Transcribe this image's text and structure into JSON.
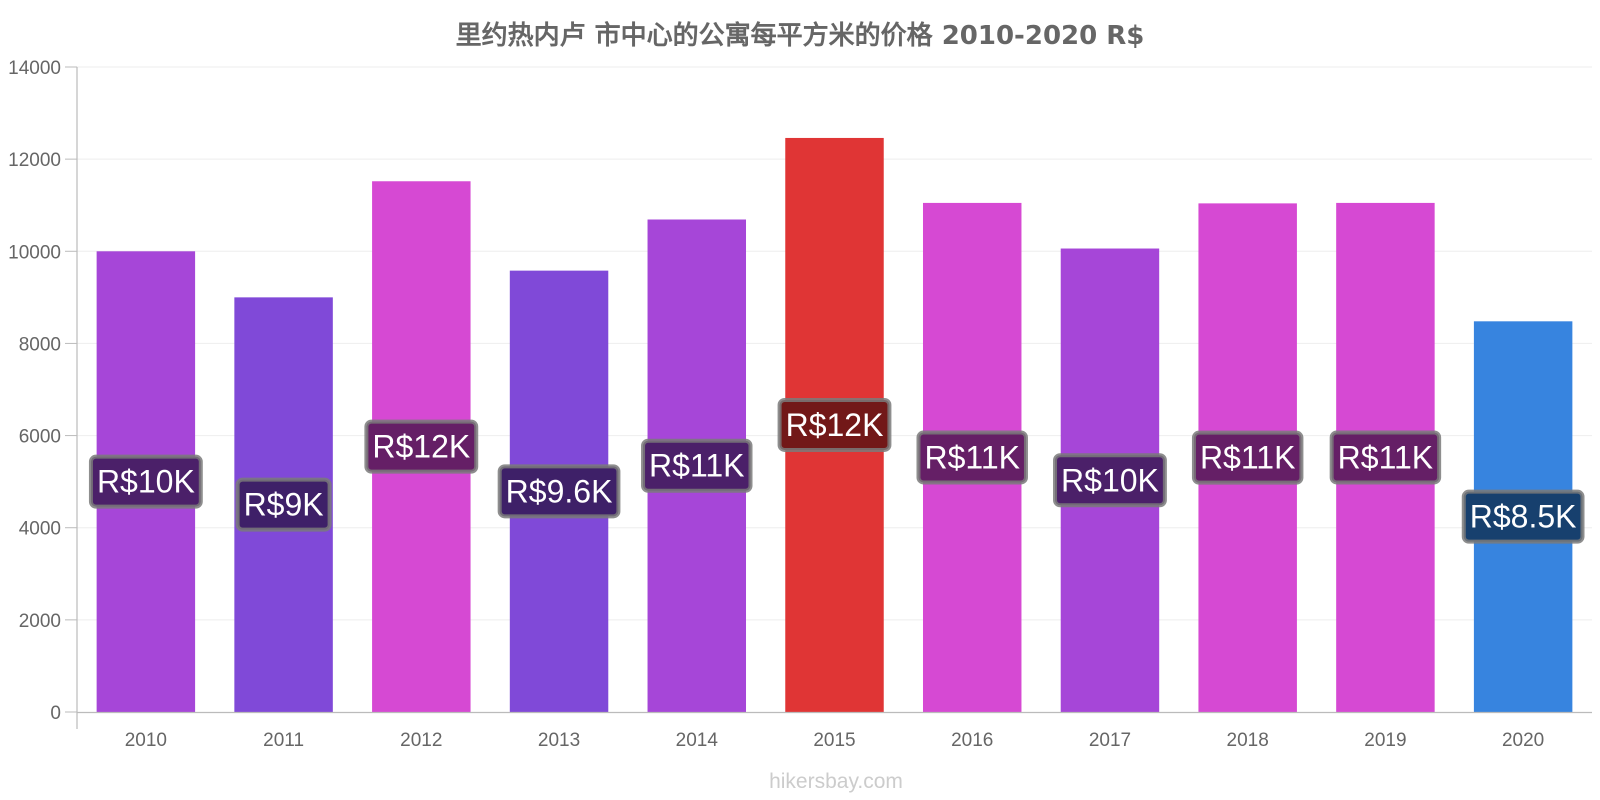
{
  "chart_data": {
    "type": "bar",
    "title": "里约热内卢 市中心的公寓每平方米的价格 2010-2020 R$",
    "xlabel": "",
    "ylabel": "",
    "ylim": [
      0,
      14000
    ],
    "yticks": [
      0,
      2000,
      4000,
      6000,
      8000,
      10000,
      12000,
      14000
    ],
    "grid": true,
    "categories": [
      "2010",
      "2011",
      "2012",
      "2013",
      "2014",
      "2015",
      "2016",
      "2017",
      "2018",
      "2019",
      "2020"
    ],
    "values": [
      10000,
      9000,
      11520,
      9580,
      10690,
      12460,
      11050,
      10060,
      11040,
      11050,
      8480
    ],
    "data_labels": [
      "R$10K",
      "R$9K",
      "R$12K",
      "R$9.6K",
      "R$11K",
      "R$12K",
      "R$11K",
      "R$10K",
      "R$11K",
      "R$11K",
      "R$8.5K"
    ],
    "bar_colors": [
      "#a646d8",
      "#8049d8",
      "#d649d3",
      "#8049d8",
      "#a646d8",
      "#e03535",
      "#d649d3",
      "#a646d8",
      "#d649d3",
      "#d649d3",
      "#3784df"
    ],
    "label_bg_colors": [
      "#4b2069",
      "#3e2068",
      "#651f66",
      "#3e2068",
      "#4b2069",
      "#721818",
      "#651f66",
      "#4b2069",
      "#651f66",
      "#651f66",
      "#17406e"
    ]
  },
  "watermark": "hikersbay.com"
}
